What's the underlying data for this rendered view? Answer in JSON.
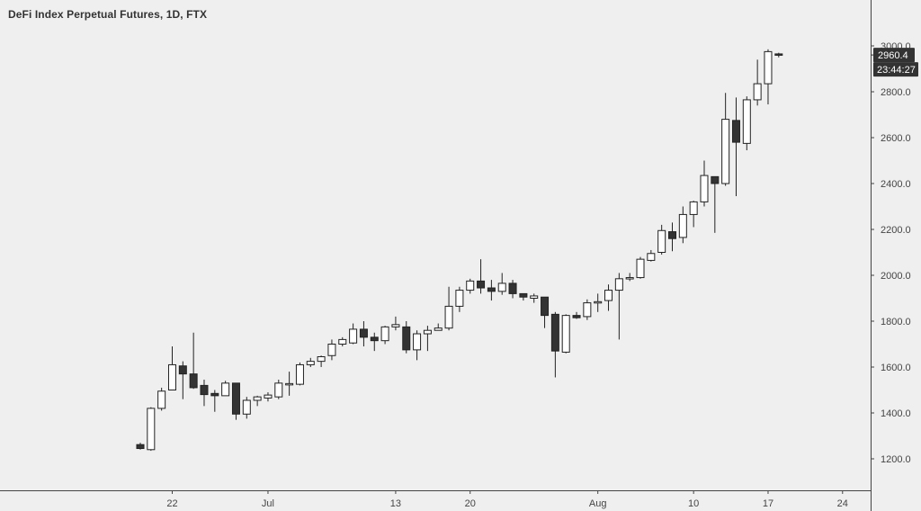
{
  "chart_data": {
    "type": "candlestick",
    "title": "DeFi Index Perpetual Futures, 1D, FTX",
    "x_tick_labels": [
      "22",
      "Jul",
      "13",
      "20",
      "Aug",
      "10",
      "17",
      "24"
    ],
    "y_tick_labels": [
      "1200.0",
      "1400.0",
      "1600.0",
      "1800.0",
      "2000.0",
      "2200.0",
      "2400.0",
      "2600.0",
      "2800.0",
      "3000.0"
    ],
    "ylim": [
      1100,
      3150
    ],
    "last_price_label": "2960.4",
    "countdown_label": "23:44:27",
    "grid": false,
    "colors": {
      "up_fill": "#ffffff",
      "down_fill": "#333333",
      "outline": "#222222",
      "background": "#efefef",
      "axis": "#444444",
      "badge": "#333333"
    },
    "candles": [
      {
        "date": "Jun 19",
        "o": 1262,
        "h": 1270,
        "l": 1240,
        "c": 1245
      },
      {
        "date": "Jun 20",
        "o": 1240,
        "h": 1425,
        "l": 1235,
        "c": 1420
      },
      {
        "date": "Jun 21",
        "o": 1420,
        "h": 1510,
        "l": 1410,
        "c": 1495
      },
      {
        "date": "Jun 22",
        "o": 1500,
        "h": 1690,
        "l": 1500,
        "c": 1610
      },
      {
        "date": "Jun 23",
        "o": 1605,
        "h": 1625,
        "l": 1460,
        "c": 1570
      },
      {
        "date": "Jun 24",
        "o": 1570,
        "h": 1750,
        "l": 1505,
        "c": 1510
      },
      {
        "date": "Jun 25",
        "o": 1520,
        "h": 1545,
        "l": 1430,
        "c": 1480
      },
      {
        "date": "Jun 26",
        "o": 1485,
        "h": 1500,
        "l": 1405,
        "c": 1475
      },
      {
        "date": "Jun 27",
        "o": 1475,
        "h": 1540,
        "l": 1475,
        "c": 1530
      },
      {
        "date": "Jun 28",
        "o": 1530,
        "h": 1530,
        "l": 1370,
        "c": 1395
      },
      {
        "date": "Jun 29",
        "o": 1395,
        "h": 1470,
        "l": 1375,
        "c": 1455
      },
      {
        "date": "Jun 30",
        "o": 1455,
        "h": 1475,
        "l": 1430,
        "c": 1470
      },
      {
        "date": "Jul 1",
        "o": 1465,
        "h": 1490,
        "l": 1450,
        "c": 1478
      },
      {
        "date": "Jul 2",
        "o": 1470,
        "h": 1545,
        "l": 1460,
        "c": 1530
      },
      {
        "date": "Jul 3",
        "o": 1525,
        "h": 1580,
        "l": 1475,
        "c": 1528
      },
      {
        "date": "Jul 4",
        "o": 1525,
        "h": 1620,
        "l": 1520,
        "c": 1610
      },
      {
        "date": "Jul 5",
        "o": 1610,
        "h": 1640,
        "l": 1600,
        "c": 1625
      },
      {
        "date": "Jul 6",
        "o": 1625,
        "h": 1650,
        "l": 1600,
        "c": 1645
      },
      {
        "date": "Jul 7",
        "o": 1650,
        "h": 1720,
        "l": 1630,
        "c": 1700
      },
      {
        "date": "Jul 8",
        "o": 1700,
        "h": 1730,
        "l": 1690,
        "c": 1720
      },
      {
        "date": "Jul 9",
        "o": 1705,
        "h": 1790,
        "l": 1700,
        "c": 1765
      },
      {
        "date": "Jul 10",
        "o": 1765,
        "h": 1800,
        "l": 1690,
        "c": 1730
      },
      {
        "date": "Jul 11",
        "o": 1730,
        "h": 1750,
        "l": 1670,
        "c": 1715
      },
      {
        "date": "Jul 12",
        "o": 1715,
        "h": 1780,
        "l": 1700,
        "c": 1775
      },
      {
        "date": "Jul 13",
        "o": 1775,
        "h": 1820,
        "l": 1760,
        "c": 1785
      },
      {
        "date": "Jul 14",
        "o": 1775,
        "h": 1800,
        "l": 1660,
        "c": 1675
      },
      {
        "date": "Jul 15",
        "o": 1675,
        "h": 1760,
        "l": 1630,
        "c": 1745
      },
      {
        "date": "Jul 16",
        "o": 1745,
        "h": 1780,
        "l": 1670,
        "c": 1760
      },
      {
        "date": "Jul 17",
        "o": 1760,
        "h": 1790,
        "l": 1760,
        "c": 1770
      },
      {
        "date": "Jul 18",
        "o": 1770,
        "h": 1950,
        "l": 1760,
        "c": 1865
      },
      {
        "date": "Jul 19",
        "o": 1865,
        "h": 1950,
        "l": 1840,
        "c": 1935
      },
      {
        "date": "Jul 20",
        "o": 1935,
        "h": 1985,
        "l": 1920,
        "c": 1975
      },
      {
        "date": "Jul 21",
        "o": 1975,
        "h": 2070,
        "l": 1920,
        "c": 1945
      },
      {
        "date": "Jul 22",
        "o": 1945,
        "h": 1980,
        "l": 1890,
        "c": 1930
      },
      {
        "date": "Jul 23",
        "o": 1930,
        "h": 2010,
        "l": 1915,
        "c": 1965
      },
      {
        "date": "Jul 24",
        "o": 1965,
        "h": 1980,
        "l": 1900,
        "c": 1920
      },
      {
        "date": "Jul 25",
        "o": 1920,
        "h": 1920,
        "l": 1890,
        "c": 1905
      },
      {
        "date": "Jul 26",
        "o": 1900,
        "h": 1920,
        "l": 1880,
        "c": 1910
      },
      {
        "date": "Jul 27",
        "o": 1905,
        "h": 1905,
        "l": 1770,
        "c": 1825
      },
      {
        "date": "Jul 28",
        "o": 1830,
        "h": 1840,
        "l": 1555,
        "c": 1670
      },
      {
        "date": "Jul 29",
        "o": 1665,
        "h": 1830,
        "l": 1660,
        "c": 1825
      },
      {
        "date": "Jul 30",
        "o": 1825,
        "h": 1840,
        "l": 1810,
        "c": 1815
      },
      {
        "date": "Jul 31",
        "o": 1820,
        "h": 1895,
        "l": 1805,
        "c": 1880
      },
      {
        "date": "Aug 1",
        "o": 1880,
        "h": 1920,
        "l": 1840,
        "c": 1885
      },
      {
        "date": "Aug 2",
        "o": 1890,
        "h": 1960,
        "l": 1845,
        "c": 1935
      },
      {
        "date": "Aug 3",
        "o": 1935,
        "h": 2010,
        "l": 1720,
        "c": 1985
      },
      {
        "date": "Aug 4",
        "o": 1985,
        "h": 2010,
        "l": 1975,
        "c": 1990
      },
      {
        "date": "Aug 5",
        "o": 1990,
        "h": 2080,
        "l": 1985,
        "c": 2070
      },
      {
        "date": "Aug 6",
        "o": 2065,
        "h": 2110,
        "l": 2060,
        "c": 2095
      },
      {
        "date": "Aug 7",
        "o": 2100,
        "h": 2220,
        "l": 2090,
        "c": 2195
      },
      {
        "date": "Aug 8",
        "o": 2190,
        "h": 2230,
        "l": 2105,
        "c": 2160
      },
      {
        "date": "Aug 9",
        "o": 2165,
        "h": 2300,
        "l": 2140,
        "c": 2265
      },
      {
        "date": "Aug 10",
        "o": 2265,
        "h": 2325,
        "l": 2210,
        "c": 2320
      },
      {
        "date": "Aug 11",
        "o": 2320,
        "h": 2500,
        "l": 2300,
        "c": 2435
      },
      {
        "date": "Aug 12",
        "o": 2430,
        "h": 2430,
        "l": 2185,
        "c": 2400
      },
      {
        "date": "Aug 13",
        "o": 2400,
        "h": 2795,
        "l": 2390,
        "c": 2680
      },
      {
        "date": "Aug 14",
        "o": 2675,
        "h": 2775,
        "l": 2345,
        "c": 2580
      },
      {
        "date": "Aug 15",
        "o": 2575,
        "h": 2780,
        "l": 2545,
        "c": 2765
      },
      {
        "date": "Aug 16",
        "o": 2765,
        "h": 2940,
        "l": 2740,
        "c": 2835
      },
      {
        "date": "Aug 17",
        "o": 2835,
        "h": 2985,
        "l": 2745,
        "c": 2975
      },
      {
        "date": "Aug 18",
        "o": 2965,
        "h": 2970,
        "l": 2950,
        "c": 2960.4
      }
    ]
  }
}
